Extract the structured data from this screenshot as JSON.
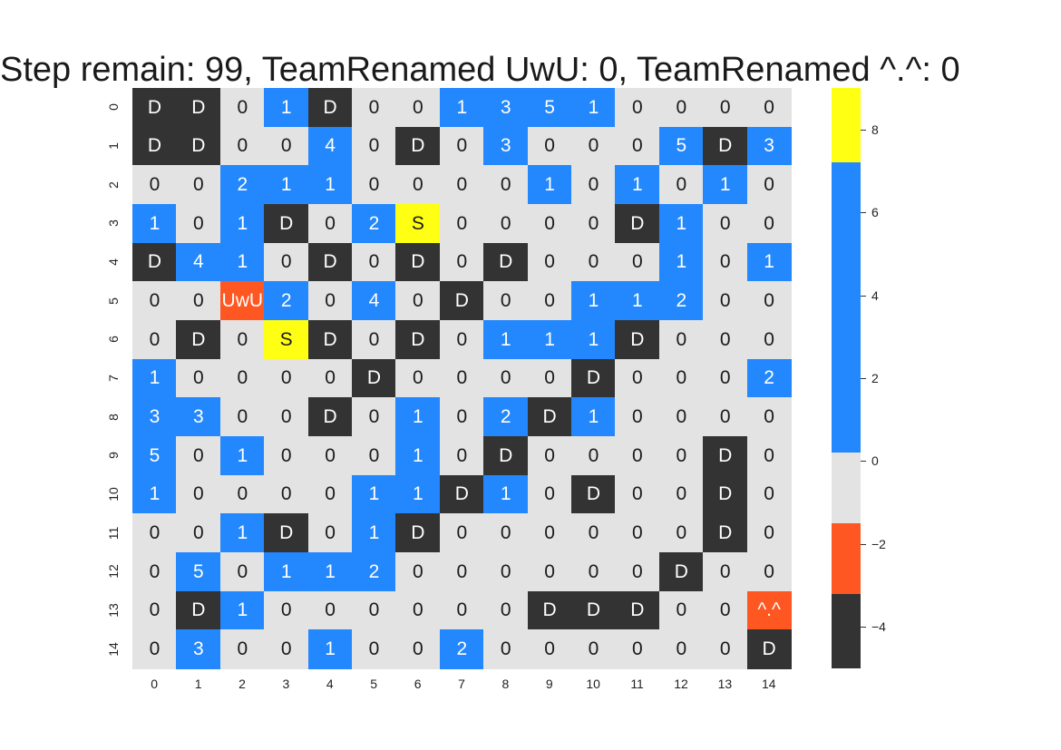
{
  "title": "Step remain: 99, TeamRenamed UwU: 0, TeamRenamed ^.^: 0",
  "colors": {
    "wall": "#333333",
    "opponent": "#ff5722",
    "empty": "#e3e3e3",
    "gold": "#2387fd",
    "shield": "#ffff13",
    "text_light": "#ffffff",
    "text_dark": "#1a1a1a"
  },
  "board": {
    "rows": [
      [
        "D",
        "D",
        "0",
        "1",
        "D",
        "0",
        "0",
        "1",
        "3",
        "5",
        "1",
        "0",
        "0",
        "0",
        "0"
      ],
      [
        "D",
        "D",
        "0",
        "0",
        "4",
        "0",
        "D",
        "0",
        "3",
        "0",
        "0",
        "0",
        "5",
        "D",
        "3"
      ],
      [
        "0",
        "0",
        "2",
        "1",
        "1",
        "0",
        "0",
        "0",
        "0",
        "1",
        "0",
        "1",
        "0",
        "1",
        "0"
      ],
      [
        "1",
        "0",
        "1",
        "D",
        "0",
        "2",
        "S",
        "0",
        "0",
        "0",
        "0",
        "D",
        "1",
        "0",
        "0"
      ],
      [
        "D",
        "4",
        "1",
        "0",
        "D",
        "0",
        "D",
        "0",
        "D",
        "0",
        "0",
        "0",
        "1",
        "0",
        "1"
      ],
      [
        "0",
        "0",
        "UwU",
        "2",
        "0",
        "4",
        "0",
        "D",
        "0",
        "0",
        "1",
        "1",
        "2",
        "0",
        "0"
      ],
      [
        "0",
        "D",
        "0",
        "S",
        "D",
        "0",
        "D",
        "0",
        "1",
        "1",
        "1",
        "D",
        "0",
        "0",
        "0"
      ],
      [
        "1",
        "0",
        "0",
        "0",
        "0",
        "D",
        "0",
        "0",
        "0",
        "0",
        "D",
        "0",
        "0",
        "0",
        "2"
      ],
      [
        "3",
        "3",
        "0",
        "0",
        "D",
        "0",
        "1",
        "0",
        "2",
        "D",
        "1",
        "0",
        "0",
        "0",
        "0"
      ],
      [
        "5",
        "0",
        "1",
        "0",
        "0",
        "0",
        "1",
        "0",
        "D",
        "0",
        "0",
        "0",
        "0",
        "D",
        "0"
      ],
      [
        "1",
        "0",
        "0",
        "0",
        "0",
        "1",
        "1",
        "D",
        "1",
        "0",
        "D",
        "0",
        "0",
        "D",
        "0"
      ],
      [
        "0",
        "0",
        "1",
        "D",
        "0",
        "1",
        "D",
        "0",
        "0",
        "0",
        "0",
        "0",
        "0",
        "D",
        "0"
      ],
      [
        "0",
        "5",
        "0",
        "1",
        "1",
        "2",
        "0",
        "0",
        "0",
        "0",
        "0",
        "0",
        "D",
        "0",
        "0"
      ],
      [
        "0",
        "D",
        "1",
        "0",
        "0",
        "0",
        "0",
        "0",
        "0",
        "D",
        "D",
        "D",
        "0",
        "0",
        "^.^"
      ],
      [
        "0",
        "3",
        "0",
        "0",
        "1",
        "0",
        "0",
        "2",
        "0",
        "0",
        "0",
        "0",
        "0",
        "0",
        "D"
      ]
    ],
    "kind_rows": [
      [
        "wall",
        "wall",
        "empty",
        "gold",
        "wall",
        "empty",
        "empty",
        "gold",
        "gold",
        "gold",
        "gold",
        "empty",
        "empty",
        "empty",
        "empty"
      ],
      [
        "wall",
        "wall",
        "empty",
        "empty",
        "gold",
        "empty",
        "wall",
        "empty",
        "gold",
        "empty",
        "empty",
        "empty",
        "gold",
        "wall",
        "gold"
      ],
      [
        "empty",
        "empty",
        "gold",
        "gold",
        "gold",
        "empty",
        "empty",
        "empty",
        "empty",
        "gold",
        "empty",
        "gold",
        "empty",
        "gold",
        "empty"
      ],
      [
        "gold",
        "empty",
        "gold",
        "wall",
        "empty",
        "gold",
        "shield",
        "empty",
        "empty",
        "empty",
        "empty",
        "wall",
        "gold",
        "empty",
        "empty"
      ],
      [
        "wall",
        "gold",
        "gold",
        "empty",
        "wall",
        "empty",
        "wall",
        "empty",
        "wall",
        "empty",
        "empty",
        "empty",
        "gold",
        "empty",
        "gold"
      ],
      [
        "empty",
        "empty",
        "opponent",
        "gold",
        "empty",
        "gold",
        "empty",
        "wall",
        "empty",
        "empty",
        "gold",
        "gold",
        "gold",
        "empty",
        "empty"
      ],
      [
        "empty",
        "wall",
        "empty",
        "shield",
        "wall",
        "empty",
        "wall",
        "empty",
        "gold",
        "gold",
        "gold",
        "wall",
        "empty",
        "empty",
        "empty"
      ],
      [
        "gold",
        "empty",
        "empty",
        "empty",
        "empty",
        "wall",
        "empty",
        "empty",
        "empty",
        "empty",
        "wall",
        "empty",
        "empty",
        "empty",
        "gold"
      ],
      [
        "gold",
        "gold",
        "empty",
        "empty",
        "wall",
        "empty",
        "gold",
        "empty",
        "gold",
        "wall",
        "gold",
        "empty",
        "empty",
        "empty",
        "empty"
      ],
      [
        "gold",
        "empty",
        "gold",
        "empty",
        "empty",
        "empty",
        "gold",
        "empty",
        "wall",
        "empty",
        "empty",
        "empty",
        "empty",
        "wall",
        "empty"
      ],
      [
        "gold",
        "empty",
        "empty",
        "empty",
        "empty",
        "gold",
        "gold",
        "wall",
        "gold",
        "empty",
        "wall",
        "empty",
        "empty",
        "wall",
        "empty"
      ],
      [
        "empty",
        "empty",
        "gold",
        "wall",
        "empty",
        "gold",
        "wall",
        "empty",
        "empty",
        "empty",
        "empty",
        "empty",
        "empty",
        "wall",
        "empty"
      ],
      [
        "empty",
        "gold",
        "empty",
        "gold",
        "gold",
        "gold",
        "empty",
        "empty",
        "empty",
        "empty",
        "empty",
        "empty",
        "wall",
        "empty",
        "empty"
      ],
      [
        "empty",
        "wall",
        "gold",
        "empty",
        "empty",
        "empty",
        "empty",
        "empty",
        "empty",
        "wall",
        "wall",
        "wall",
        "empty",
        "empty",
        "opponent"
      ],
      [
        "empty",
        "gold",
        "empty",
        "empty",
        "gold",
        "empty",
        "empty",
        "gold",
        "empty",
        "empty",
        "empty",
        "empty",
        "empty",
        "empty",
        "wall"
      ]
    ],
    "row_labels": [
      "0",
      "1",
      "2",
      "3",
      "4",
      "5",
      "6",
      "7",
      "8",
      "9",
      "10",
      "11",
      "12",
      "13",
      "14"
    ],
    "col_labels": [
      "0",
      "1",
      "2",
      "3",
      "4",
      "5",
      "6",
      "7",
      "8",
      "9",
      "10",
      "11",
      "12",
      "13",
      "14"
    ]
  },
  "colorbar": {
    "range": [
      -5,
      9
    ],
    "segments": [
      {
        "from": 7.2,
        "to": 9,
        "kind": "shield"
      },
      {
        "from": 0.2,
        "to": 7.2,
        "kind": "gold"
      },
      {
        "from": -1.5,
        "to": 0.2,
        "kind": "empty"
      },
      {
        "from": -3.2,
        "to": -1.5,
        "kind": "opponent"
      },
      {
        "from": -5,
        "to": -3.2,
        "kind": "wall"
      }
    ],
    "ticks": [
      8,
      6,
      4,
      2,
      0,
      -2,
      -4
    ],
    "tick_labels": [
      "8",
      "6",
      "4",
      "2",
      "0",
      "−2",
      "−4"
    ]
  }
}
